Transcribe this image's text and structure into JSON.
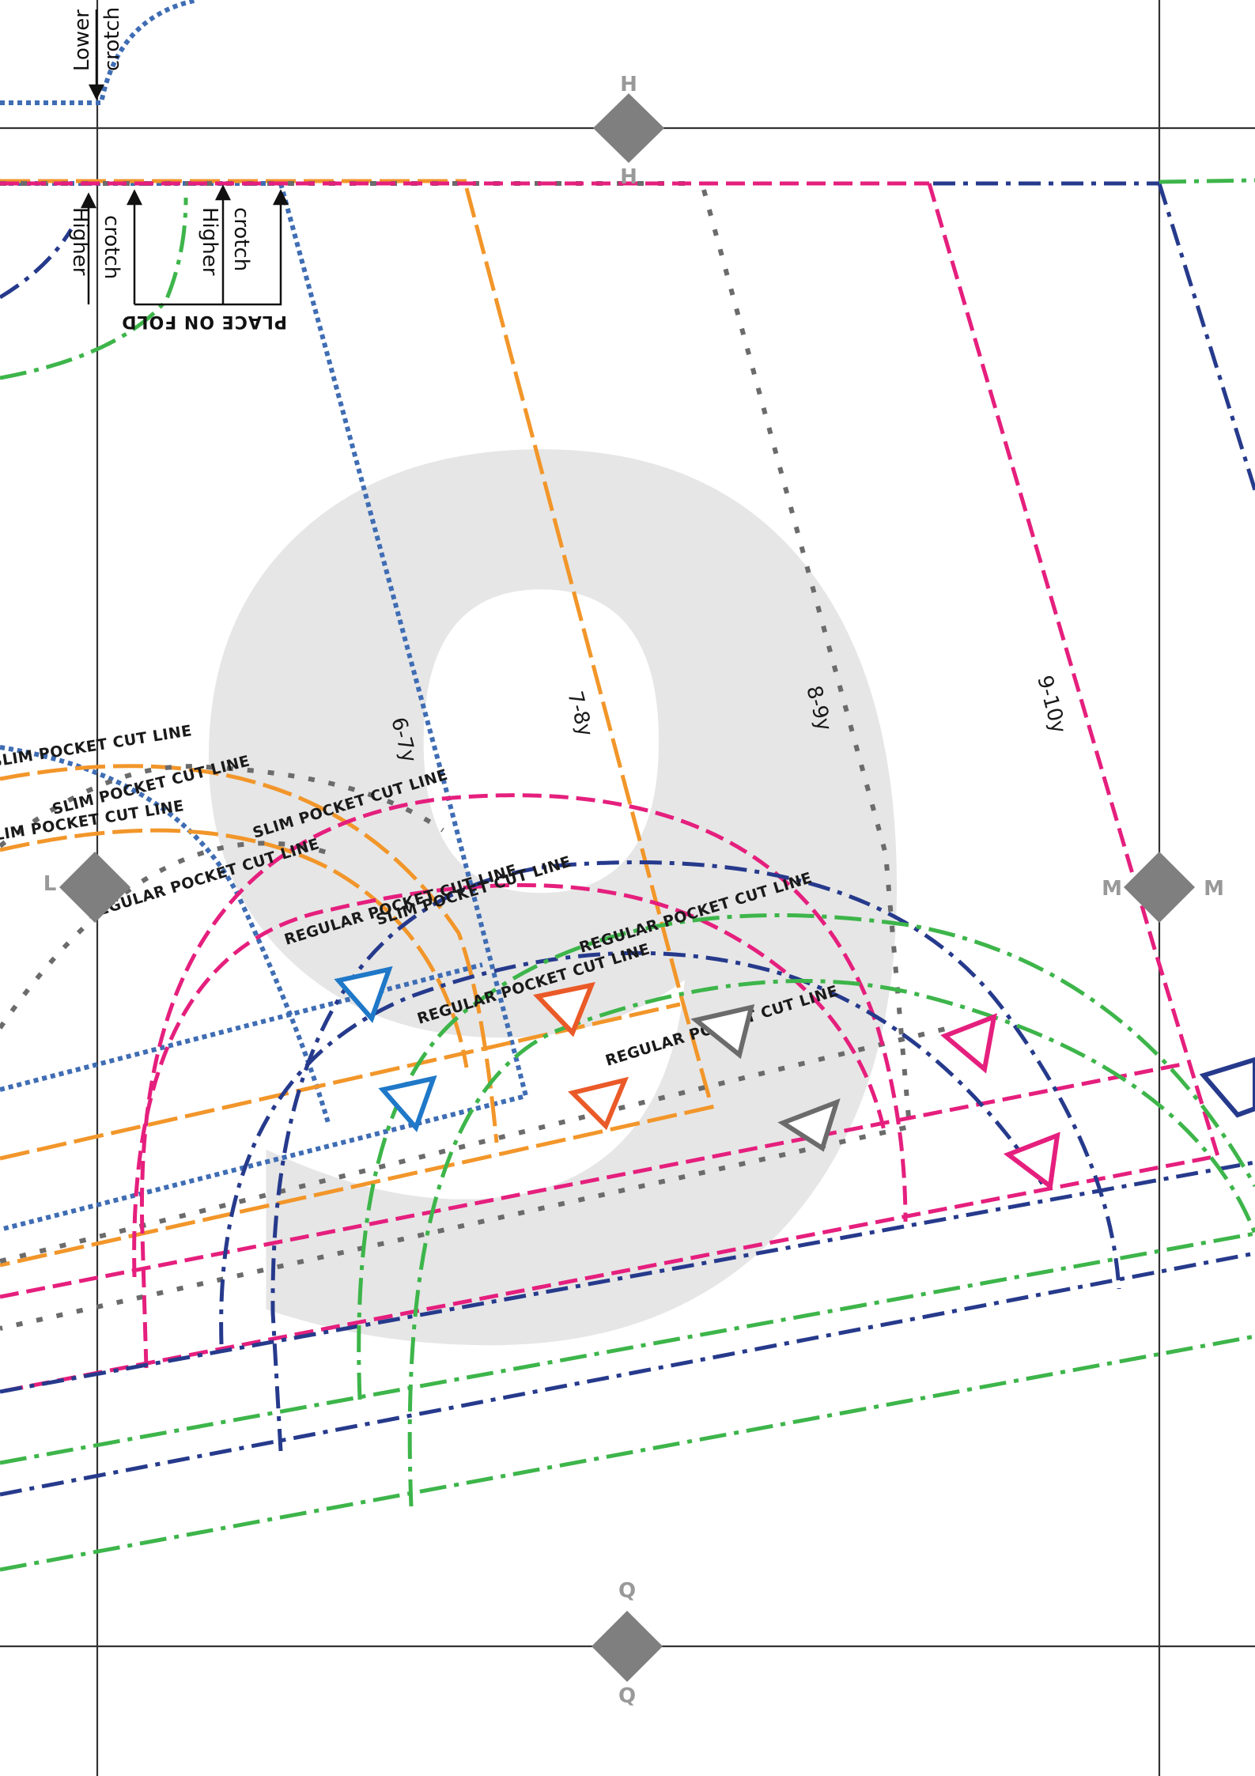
{
  "page_number": "9",
  "colors": {
    "size_6_7y": "#3f6db4",
    "size_7_8y": "#f2962a",
    "size_8_9y": "#6b6b6b",
    "size_9_10y": "#e51f7d",
    "size_10_11y": "#263a8c",
    "size_11_12y": "#3db54a",
    "grid": "#333333",
    "marker": "#7f7f7f",
    "watermark": "#e6e6e6"
  },
  "registration_marks": {
    "top": "H",
    "top_lower": "H",
    "left": "L",
    "right_left": "M",
    "right_right": "M",
    "bottom_upper": "Q",
    "bottom_lower": "Q"
  },
  "size_labels": {
    "s1": "6-7y",
    "s2": "7-8y",
    "s3": "8-9y",
    "s4": "9-10y"
  },
  "crotch_notes": {
    "lower_line1": "Lower",
    "lower_line2": "crotch",
    "higher_a_line1": "Higher",
    "higher_a_line2": "crotch",
    "higher_b_line1": "Higher",
    "higher_b_line2": "crotch",
    "place_on_fold": "PLACE ON FOLD"
  },
  "pocket_labels": {
    "slim_1": "SLIM POCKET CUT LINE",
    "slim_2": "SLIM POCKET CUT LINE",
    "slim_3": "SLIM POCKET CUT LINE",
    "slim_4": "SLIM POCKET CUT LINE",
    "slim_5": "SLIM POCKET CUT LINE",
    "regular_1": "REGULAR POCKET CUT LINE",
    "regular_2": "REGULAR POCKET CUT LINE",
    "regular_3": "REGULAR POCKET CUT LINE",
    "regular_4": "REGULAR POCKET CUT LINE",
    "regular_5": "REGULAR POCKET CUT LINE"
  },
  "icons": [
    "registration-diamond-icon",
    "notch-triangle-icon",
    "arrow-up-icon",
    "arrow-down-icon"
  ]
}
